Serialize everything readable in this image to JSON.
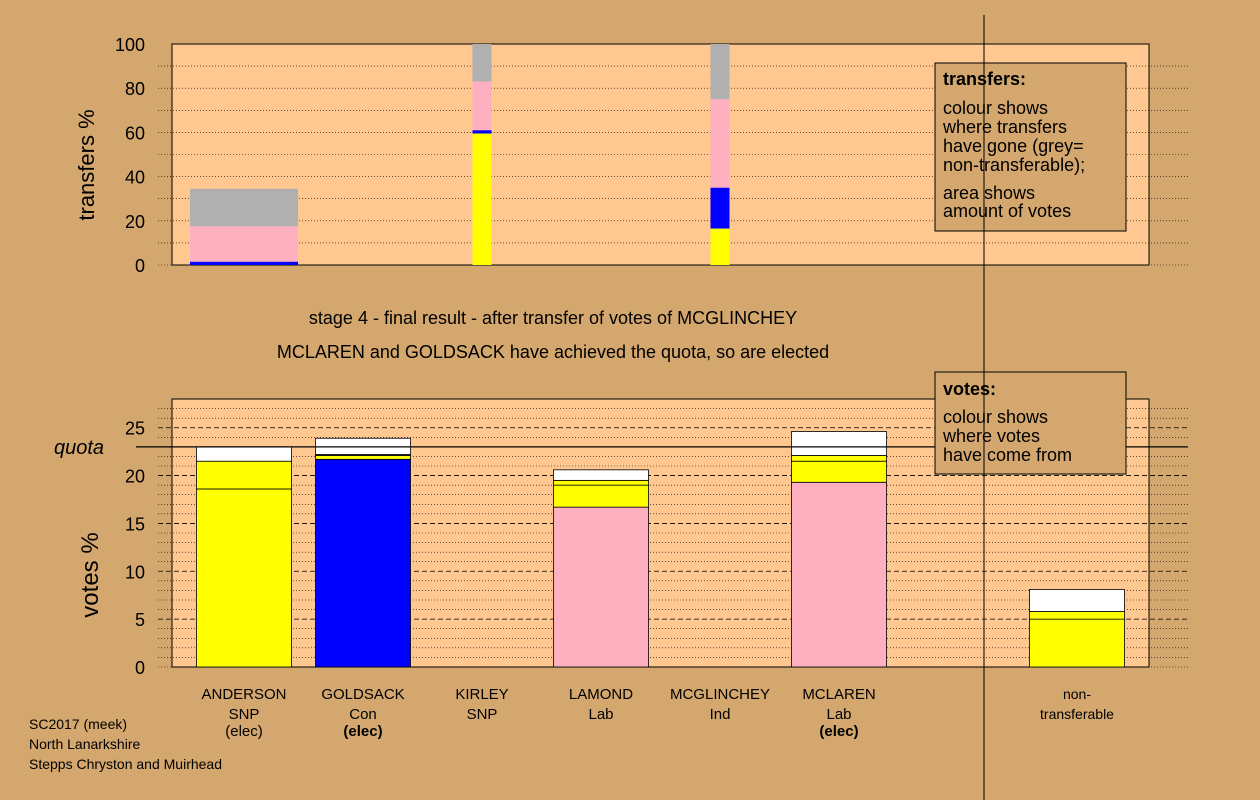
{
  "info": {
    "source": "SC2017 (meek)",
    "council": "North Lanarkshire",
    "ward": "Stepps Chryston and Muirhead"
  },
  "headings": {
    "stage": "stage 4 - final result - after transfer of votes of MCGLINCHEY",
    "elected": "MCLAREN and GOLDSACK have achieved the quota, so are elected"
  },
  "legend_transfers": {
    "title": "transfers:",
    "lines": [
      "colour shows",
      "where transfers",
      "have gone (grey=",
      "non-transferable);",
      "area shows",
      "amount of votes"
    ]
  },
  "legend_votes": {
    "title": "votes:",
    "lines": [
      "colour shows",
      "where votes",
      "have come from"
    ]
  },
  "colors": {
    "background": "#d4a76e",
    "plot": "#ffc890",
    "snp": "#ffff00",
    "con": "#0000ff",
    "lab": "#ffb0c0",
    "ind": "#ffffff",
    "nontransferable": "#b0b0b0"
  },
  "chart_data": [
    {
      "type": "bar",
      "ylabel": "transfers %",
      "ylim": [
        0,
        100
      ],
      "yticks": [
        0,
        20,
        40,
        60,
        80,
        100
      ],
      "grid": true,
      "bars": [
        {
          "slot": 0,
          "width": "wide",
          "segments": [
            {
              "party": "con",
              "from": 0,
              "to": 1.5
            },
            {
              "party": "lab",
              "from": 1.5,
              "to": 17.5
            },
            {
              "party": "nontransferable",
              "from": 17.5,
              "to": 34.5
            }
          ]
        },
        {
          "slot": 2,
          "width": "narrow",
          "segments": [
            {
              "party": "snp",
              "from": 0,
              "to": 59.5
            },
            {
              "party": "con",
              "from": 59.5,
              "to": 61
            },
            {
              "party": "lab",
              "from": 61,
              "to": 83
            },
            {
              "party": "nontransferable",
              "from": 83,
              "to": 100
            }
          ]
        },
        {
          "slot": 4,
          "width": "narrow",
          "segments": [
            {
              "party": "snp",
              "from": 0,
              "to": 16.5
            },
            {
              "party": "con",
              "from": 16.5,
              "to": 35
            },
            {
              "party": "lab",
              "from": 35,
              "to": 75
            },
            {
              "party": "nontransferable",
              "from": 75,
              "to": 100
            }
          ]
        }
      ]
    },
    {
      "type": "bar",
      "ylabel": "votes %",
      "ylim": [
        0,
        28
      ],
      "yticks": [
        0,
        5,
        10,
        15,
        20,
        25
      ],
      "grid": true,
      "quota": 23,
      "quota_label": "quota",
      "categories": [
        {
          "name": "ANDERSON",
          "party": "SNP",
          "status": "(elec)",
          "bold": false
        },
        {
          "name": "GOLDSACK",
          "party": "Con",
          "status": "(elec)",
          "bold": true
        },
        {
          "name": "KIRLEY",
          "party": "SNP",
          "status": "",
          "bold": false
        },
        {
          "name": "LAMOND",
          "party": "Lab",
          "status": "",
          "bold": false
        },
        {
          "name": "MCGLINCHEY",
          "party": "Ind",
          "status": "",
          "bold": false
        },
        {
          "name": "MCLAREN",
          "party": "Lab",
          "status": "(elec)",
          "bold": true
        },
        {
          "name": "non-",
          "party": "transferable",
          "status": "",
          "bold": false
        }
      ],
      "bars": [
        {
          "slot": 0,
          "segments": [
            {
              "party": "snp",
              "from": 0,
              "to": 18.6
            },
            {
              "party": "snp",
              "from": 18.6,
              "to": 21.5
            },
            {
              "party": "ind",
              "from": 21.5,
              "to": 23
            }
          ]
        },
        {
          "slot": 1,
          "segments": [
            {
              "party": "con",
              "from": 0,
              "to": 21.7
            },
            {
              "party": "snp",
              "from": 21.7,
              "to": 22.1
            },
            {
              "party": "lab",
              "from": 22.1,
              "to": 22.2
            },
            {
              "party": "ind",
              "from": 22.2,
              "to": 23.9
            }
          ]
        },
        {
          "slot": 3,
          "segments": [
            {
              "party": "lab",
              "from": 0,
              "to": 16.7
            },
            {
              "party": "snp",
              "from": 16.7,
              "to": 19
            },
            {
              "party": "snp",
              "from": 19,
              "to": 19.5
            },
            {
              "party": "ind",
              "from": 19.5,
              "to": 20.6
            }
          ]
        },
        {
          "slot": 5,
          "segments": [
            {
              "party": "lab",
              "from": 0,
              "to": 19.3
            },
            {
              "party": "snp",
              "from": 19.3,
              "to": 21.5
            },
            {
              "party": "snp",
              "from": 21.5,
              "to": 22.1
            },
            {
              "party": "ind",
              "from": 22.1,
              "to": 24.6
            }
          ]
        },
        {
          "slot": 7,
          "segments": [
            {
              "party": "snp",
              "from": 0,
              "to": 5
            },
            {
              "party": "snp",
              "from": 5,
              "to": 5.8
            },
            {
              "party": "ind",
              "from": 5.8,
              "to": 8.1
            }
          ]
        }
      ]
    }
  ]
}
